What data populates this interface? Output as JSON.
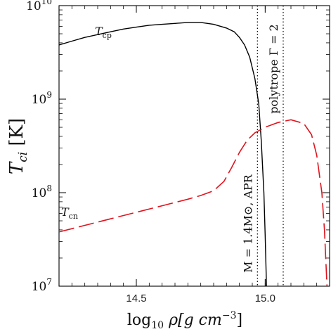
{
  "chart_data": {
    "type": "line",
    "title": "",
    "xlabel": {
      "base": "log",
      "sub": "10",
      "rest": " ρ[g cm",
      "sup": "−3",
      "close": "]"
    },
    "ylabel": {
      "base": "T",
      "sub": "ci",
      "rest": " [K]"
    },
    "xlim": [
      14.2,
      15.25
    ],
    "ylim_log10": [
      7,
      10
    ],
    "y_scale": "log",
    "grid": false,
    "x_ticks": [
      {
        "value": 14.5,
        "label": "14.5"
      },
      {
        "value": 15.0,
        "label": "15.0"
      }
    ],
    "y_ticks": [
      {
        "exp": 7,
        "base": "10",
        "sup": "7"
      },
      {
        "exp": 8,
        "base": "10",
        "sup": "8"
      },
      {
        "exp": 9,
        "base": "10",
        "sup": "9"
      },
      {
        "exp": 10,
        "base": "10",
        "sup": "10"
      }
    ],
    "series": [
      {
        "name": "T_cp",
        "label_base": "T",
        "label_sub": "cp",
        "color": "#000000",
        "style": "solid",
        "points": [
          [
            14.2,
            9.58
          ],
          [
            14.25,
            9.62
          ],
          [
            14.3,
            9.66
          ],
          [
            14.35,
            9.69
          ],
          [
            14.4,
            9.72
          ],
          [
            14.45,
            9.75
          ],
          [
            14.5,
            9.77
          ],
          [
            14.55,
            9.79
          ],
          [
            14.6,
            9.8
          ],
          [
            14.65,
            9.81
          ],
          [
            14.7,
            9.82
          ],
          [
            14.75,
            9.82
          ],
          [
            14.8,
            9.8
          ],
          [
            14.85,
            9.76
          ],
          [
            14.88,
            9.72
          ],
          [
            14.9,
            9.66
          ],
          [
            14.92,
            9.58
          ],
          [
            14.94,
            9.45
          ],
          [
            14.96,
            9.22
          ],
          [
            14.975,
            8.95
          ],
          [
            14.985,
            8.55
          ],
          [
            14.995,
            8.0
          ],
          [
            15.0,
            7.55
          ],
          [
            15.005,
            7.0
          ]
        ]
      },
      {
        "name": "T_cn",
        "label_base": "T",
        "label_sub": "cn",
        "color": "#e0141e",
        "style": "dashed",
        "points": [
          [
            14.2,
            7.58
          ],
          [
            14.3,
            7.65
          ],
          [
            14.4,
            7.72
          ],
          [
            14.5,
            7.79
          ],
          [
            14.6,
            7.86
          ],
          [
            14.7,
            7.93
          ],
          [
            14.75,
            7.97
          ],
          [
            14.8,
            8.02
          ],
          [
            14.84,
            8.12
          ],
          [
            14.87,
            8.27
          ],
          [
            14.9,
            8.43
          ],
          [
            14.93,
            8.56
          ],
          [
            14.96,
            8.64
          ],
          [
            15.0,
            8.7
          ],
          [
            15.05,
            8.75
          ],
          [
            15.1,
            8.78
          ],
          [
            15.15,
            8.74
          ],
          [
            15.18,
            8.62
          ],
          [
            15.2,
            8.4
          ],
          [
            15.22,
            8.0
          ],
          [
            15.23,
            7.6
          ],
          [
            15.24,
            7.0
          ]
        ]
      }
    ],
    "vlines": [
      {
        "x": 14.97,
        "style": "dotted",
        "text": "M = 1.4M⊙, APR"
      },
      {
        "x": 15.07,
        "style": "dotted",
        "text": "polytrope Γ = 2"
      }
    ]
  }
}
